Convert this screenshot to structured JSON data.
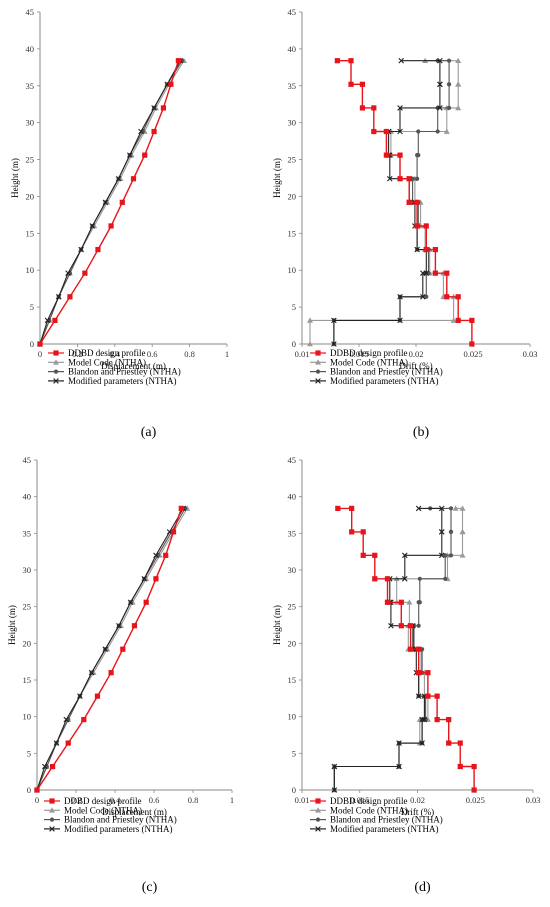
{
  "legend_labels": [
    "DDBD design profile",
    "Model Code (NTHA)",
    "Blandon and Priestley (NTHA)",
    "Modified parameters (NTHA)"
  ],
  "series_styles": [
    {
      "color": "#e8141b",
      "marker": "square"
    },
    {
      "color": "#9a9a9a",
      "marker": "triangle"
    },
    {
      "color": "#555555",
      "marker": "circle"
    },
    {
      "color": "#222222",
      "marker": "x"
    }
  ],
  "chart_data": [
    {
      "panel": "(a)",
      "type": "line",
      "xlabel": "Displacement (m)",
      "ylabel": "Height (m)",
      "xlim": [
        0,
        1
      ],
      "ylim": [
        0,
        45
      ],
      "xticks": [
        0,
        0.2,
        0.4,
        0.6,
        0.8,
        1
      ],
      "xtick_labels": [
        "0",
        "0.2",
        "0.4",
        "0.6",
        "0.8",
        "1"
      ],
      "yticks": [
        0,
        5,
        10,
        15,
        20,
        25,
        30,
        35,
        40,
        45
      ],
      "ytick_labels": [
        "0",
        "5",
        "10",
        "15",
        "20",
        "25",
        "30",
        "35",
        "40",
        "45"
      ],
      "series": [
        {
          "name": "DDBD design profile",
          "x": [
            0,
            0.08,
            0.16,
            0.24,
            0.31,
            0.38,
            0.44,
            0.5,
            0.56,
            0.61,
            0.66,
            0.7,
            0.74
          ],
          "y": [
            0,
            3.2,
            6.4,
            9.6,
            12.8,
            16,
            19.2,
            22.4,
            25.6,
            28.8,
            32,
            35.2,
            38.4
          ]
        },
        {
          "name": "Model Code (NTHA)",
          "x": [
            0,
            0.05,
            0.1,
            0.16,
            0.22,
            0.29,
            0.36,
            0.43,
            0.49,
            0.56,
            0.62,
            0.69,
            0.77
          ],
          "y": [
            0,
            3.2,
            6.4,
            9.6,
            12.8,
            16,
            19.2,
            22.4,
            25.6,
            28.8,
            32,
            35.2,
            38.4
          ]
        },
        {
          "name": "Blandon and Priestley (NTHA)",
          "x": [
            0,
            0.05,
            0.1,
            0.16,
            0.22,
            0.28,
            0.35,
            0.42,
            0.48,
            0.55,
            0.61,
            0.68,
            0.76
          ],
          "y": [
            0,
            3.2,
            6.4,
            9.6,
            12.8,
            16,
            19.2,
            22.4,
            25.6,
            28.8,
            32,
            35.2,
            38.4
          ]
        },
        {
          "name": "Modified parameters (NTHA)",
          "x": [
            0,
            0.04,
            0.1,
            0.15,
            0.22,
            0.28,
            0.35,
            0.42,
            0.48,
            0.54,
            0.61,
            0.68,
            0.75
          ],
          "y": [
            0,
            3.2,
            6.4,
            9.6,
            12.8,
            16,
            19.2,
            22.4,
            25.6,
            28.8,
            32,
            35.2,
            38.4
          ]
        }
      ]
    },
    {
      "panel": "(b)",
      "type": "line",
      "xlabel": "Drift (%)",
      "ylabel": "Height (m)",
      "xlim": [
        0.01,
        0.03
      ],
      "ylim": [
        0,
        45
      ],
      "xticks": [
        0.01,
        0.015,
        0.02,
        0.025,
        0.03
      ],
      "xtick_labels": [
        "0.01",
        "0.015",
        "0.02",
        "0.025",
        "0.03"
      ],
      "yticks": [
        0,
        5,
        10,
        15,
        20,
        25,
        30,
        35,
        40,
        45
      ],
      "ytick_labels": [
        "0",
        "5",
        "10",
        "15",
        "20",
        "25",
        "30",
        "35",
        "40",
        "45"
      ],
      "series": [
        {
          "name": "DDBD design profile",
          "drift": [
            0.0249,
            0.0237,
            0.0227,
            0.0217,
            0.0209,
            0.0201,
            0.0194,
            0.0186,
            0.0174,
            0.0163,
            0.0153,
            0.0143,
            0.0131
          ],
          "y": [
            0,
            3.2,
            6.4,
            9.6,
            12.8,
            16,
            19.2,
            22.4,
            25.6,
            28.8,
            32,
            35.2,
            38.4
          ]
        },
        {
          "name": "Model Code (NTHA)",
          "drift": [
            0.0107,
            0.0233,
            0.0224,
            0.0212,
            0.0208,
            0.0204,
            0.0199,
            0.0186,
            0.0178,
            0.0227,
            0.0237,
            0.0237,
            0.0208
          ],
          "y": [
            0,
            3.2,
            6.4,
            9.6,
            12.8,
            16,
            19.2,
            22.4,
            25.6,
            28.8,
            32,
            35.2,
            38.4
          ]
        },
        {
          "name": "Blandon and Priestley (NTHA)",
          "drift": [
            0.0128,
            0.0186,
            0.0209,
            0.0211,
            0.0201,
            0.0202,
            0.0197,
            0.0201,
            0.0202,
            0.0219,
            0.0229,
            0.0229,
            0.0219
          ],
          "y": [
            0,
            3.2,
            6.4,
            9.6,
            12.8,
            16,
            19.2,
            22.4,
            25.6,
            28.8,
            32,
            35.2,
            38.4
          ]
        },
        {
          "name": "Modified parameters (NTHA)",
          "drift": [
            0.0128,
            0.0186,
            0.0206,
            0.0209,
            0.0201,
            0.0199,
            0.0194,
            0.0177,
            0.0176,
            0.0186,
            0.0221,
            0.0221,
            0.0187
          ],
          "y": [
            0,
            3.2,
            6.4,
            9.6,
            12.8,
            16,
            19.2,
            22.4,
            25.6,
            28.8,
            32,
            35.2,
            38.4
          ]
        }
      ]
    },
    {
      "panel": "(c)",
      "type": "line",
      "xlabel": "Displacement (m)",
      "ylabel": "Height (m)",
      "xlim": [
        0,
        1
      ],
      "ylim": [
        0,
        45
      ],
      "xticks": [
        0,
        0.2,
        0.4,
        0.6,
        0.8,
        1
      ],
      "xtick_labels": [
        "0",
        "0.2",
        "0.4",
        "0.6",
        "0.8",
        "1"
      ],
      "yticks": [
        0,
        5,
        10,
        15,
        20,
        25,
        30,
        35,
        40,
        45
      ],
      "ytick_labels": [
        "0",
        "5",
        "10",
        "15",
        "20",
        "25",
        "30",
        "35",
        "40",
        "45"
      ],
      "series": [
        {
          "name": "DDBD design profile",
          "x": [
            0,
            0.08,
            0.16,
            0.24,
            0.31,
            0.38,
            0.44,
            0.5,
            0.56,
            0.61,
            0.66,
            0.7,
            0.74
          ],
          "y": [
            0,
            3.2,
            6.4,
            9.6,
            12.8,
            16,
            19.2,
            22.4,
            25.6,
            28.8,
            32,
            35.2,
            38.4
          ]
        },
        {
          "name": "Model Code (NTHA)",
          "x": [
            0,
            0.05,
            0.1,
            0.16,
            0.22,
            0.29,
            0.36,
            0.43,
            0.49,
            0.56,
            0.63,
            0.7,
            0.77
          ],
          "y": [
            0,
            3.2,
            6.4,
            9.6,
            12.8,
            16,
            19.2,
            22.4,
            25.6,
            28.8,
            32,
            35.2,
            38.4
          ]
        },
        {
          "name": "Blandon and Priestley (NTHA)",
          "x": [
            0,
            0.05,
            0.1,
            0.16,
            0.22,
            0.28,
            0.35,
            0.42,
            0.48,
            0.55,
            0.62,
            0.69,
            0.76
          ],
          "y": [
            0,
            3.2,
            6.4,
            9.6,
            12.8,
            16,
            19.2,
            22.4,
            25.6,
            28.8,
            32,
            35.2,
            38.4
          ]
        },
        {
          "name": "Modified parameters (NTHA)",
          "x": [
            0,
            0.04,
            0.1,
            0.15,
            0.22,
            0.28,
            0.35,
            0.42,
            0.48,
            0.55,
            0.61,
            0.68,
            0.75
          ],
          "y": [
            0,
            3.2,
            6.4,
            9.6,
            12.8,
            16,
            19.2,
            22.4,
            25.6,
            28.8,
            32,
            35.2,
            38.4
          ]
        }
      ]
    },
    {
      "panel": "(d)",
      "type": "line",
      "xlabel": "Drift (%)",
      "ylabel": "Height (m)",
      "xlim": [
        0.01,
        0.03
      ],
      "ylim": [
        0,
        45
      ],
      "xticks": [
        0.01,
        0.015,
        0.02,
        0.025,
        0.03
      ],
      "xtick_labels": [
        "0.01",
        "0.015",
        "0.02",
        "0.025",
        "0.03"
      ],
      "yticks": [
        0,
        5,
        10,
        15,
        20,
        25,
        30,
        35,
        40,
        45
      ],
      "ytick_labels": [
        "0",
        "5",
        "10",
        "15",
        "20",
        "25",
        "30",
        "35",
        "40",
        "45"
      ],
      "series": [
        {
          "name": "DDBD design profile",
          "drift": [
            0.0249,
            0.0237,
            0.0227,
            0.0217,
            0.0209,
            0.0201,
            0.0194,
            0.0186,
            0.0174,
            0.0163,
            0.0153,
            0.0143,
            0.0131
          ],
          "y": [
            0,
            3.2,
            6.4,
            9.6,
            12.8,
            16,
            19.2,
            22.4,
            25.6,
            28.8,
            32,
            35.2,
            38.4
          ]
        },
        {
          "name": "Model Code (NTHA)",
          "drift": [
            0.0128,
            0.0184,
            0.0202,
            0.0209,
            0.0206,
            0.0203,
            0.0192,
            0.0193,
            0.0182,
            0.0226,
            0.0239,
            0.0239,
            0.0233
          ],
          "y": [
            0,
            3.2,
            6.4,
            9.6,
            12.8,
            16,
            19.2,
            22.4,
            25.6,
            28.8,
            32,
            35.2,
            38.4
          ]
        },
        {
          "name": "Blandon and Priestley (NTHA)",
          "drift": [
            0.0128,
            0.0184,
            0.0204,
            0.0207,
            0.0201,
            0.0204,
            0.0197,
            0.0201,
            0.0202,
            0.0224,
            0.0229,
            0.0229,
            0.0211
          ],
          "y": [
            0,
            3.2,
            6.4,
            9.6,
            12.8,
            16,
            19.2,
            22.4,
            25.6,
            28.8,
            32,
            35.2,
            38.4
          ]
        },
        {
          "name": "Modified parameters (NTHA)",
          "drift": [
            0.0128,
            0.0184,
            0.0204,
            0.0206,
            0.0201,
            0.0199,
            0.0196,
            0.0177,
            0.0176,
            0.0189,
            0.0221,
            0.0221,
            0.0201
          ],
          "y": [
            0,
            3.2,
            6.4,
            9.6,
            12.8,
            16,
            19.2,
            22.4,
            25.6,
            28.8,
            32,
            35.2,
            38.4
          ]
        }
      ]
    }
  ]
}
